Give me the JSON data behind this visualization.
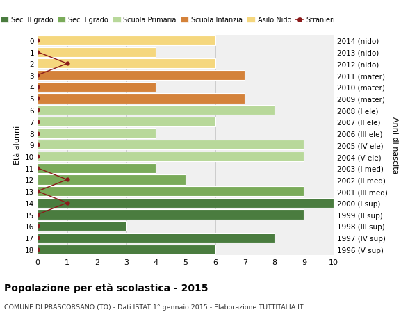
{
  "ages": [
    18,
    17,
    16,
    15,
    14,
    13,
    12,
    11,
    10,
    9,
    8,
    7,
    6,
    5,
    4,
    3,
    2,
    1,
    0
  ],
  "years": [
    "1996 (V sup)",
    "1997 (IV sup)",
    "1998 (III sup)",
    "1999 (II sup)",
    "2000 (I sup)",
    "2001 (III med)",
    "2002 (II med)",
    "2003 (I med)",
    "2004 (V ele)",
    "2005 (IV ele)",
    "2006 (III ele)",
    "2007 (II ele)",
    "2008 (I ele)",
    "2009 (mater)",
    "2010 (mater)",
    "2011 (mater)",
    "2012 (nido)",
    "2013 (nido)",
    "2014 (nido)"
  ],
  "bar_values": [
    6,
    8,
    3,
    9,
    10,
    9,
    5,
    4,
    9,
    9,
    4,
    6,
    8,
    7,
    4,
    7,
    6,
    4,
    6
  ],
  "bar_colors": [
    "#4a7c3f",
    "#4a7c3f",
    "#4a7c3f",
    "#4a7c3f",
    "#4a7c3f",
    "#7aab5a",
    "#7aab5a",
    "#7aab5a",
    "#b8d89a",
    "#b8d89a",
    "#b8d89a",
    "#b8d89a",
    "#b8d89a",
    "#d4823a",
    "#d4823a",
    "#d4823a",
    "#f5d77e",
    "#f5d77e",
    "#f5d77e"
  ],
  "stranieri_values": [
    0,
    0,
    0,
    0,
    1,
    0,
    1,
    0,
    0,
    0,
    0,
    0,
    0,
    0,
    0,
    0,
    1,
    0,
    0
  ],
  "stranieri_color": "#8b1a1a",
  "legend_labels": [
    "Sec. II grado",
    "Sec. I grado",
    "Scuola Primaria",
    "Scuola Infanzia",
    "Asilo Nido",
    "Stranieri"
  ],
  "legend_colors": [
    "#4a7c3f",
    "#7aab5a",
    "#b8d89a",
    "#d4823a",
    "#f5d77e",
    "#8b1a1a"
  ],
  "title": "Popolazione per età scolastica - 2015",
  "subtitle": "COMUNE DI PRASCORSANO (TO) - Dati ISTAT 1° gennaio 2015 - Elaborazione TUTTITALIA.IT",
  "ylabel_left": "Età alunni",
  "ylabel_right": "Anni di nascita",
  "bg_color": "#f0f0f0",
  "grid_color": "#cccccc"
}
